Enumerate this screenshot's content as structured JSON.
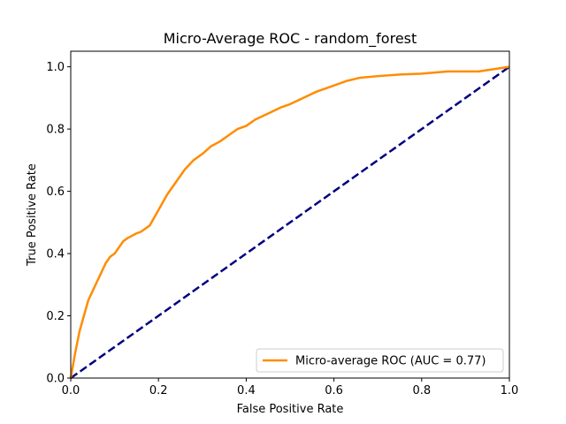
{
  "chart_data": {
    "type": "line",
    "title": "Micro-Average ROC - random_forest",
    "xlabel": "False Positive Rate",
    "ylabel": "True Positive Rate",
    "xlim": [
      0,
      1
    ],
    "ylim": [
      0,
      1.05
    ],
    "xticks": [
      "0.0",
      "0.2",
      "0.4",
      "0.6",
      "0.8",
      "1.0"
    ],
    "yticks": [
      "0.0",
      "0.2",
      "0.4",
      "0.6",
      "0.8",
      "1.0"
    ],
    "grid": false,
    "legend_position": "lower right",
    "series": [
      {
        "name": "Micro-average ROC (AUC = 0.77)",
        "color": "#ff8c00",
        "style": "solid",
        "x": [
          0.0,
          0.005,
          0.01,
          0.02,
          0.03,
          0.04,
          0.05,
          0.06,
          0.07,
          0.08,
          0.09,
          0.1,
          0.11,
          0.12,
          0.13,
          0.15,
          0.16,
          0.18,
          0.2,
          0.22,
          0.24,
          0.26,
          0.28,
          0.3,
          0.32,
          0.34,
          0.36,
          0.38,
          0.4,
          0.42,
          0.45,
          0.48,
          0.5,
          0.53,
          0.56,
          0.6,
          0.63,
          0.66,
          0.7,
          0.75,
          0.8,
          0.86,
          0.93,
          1.0
        ],
        "y": [
          0.0,
          0.04,
          0.08,
          0.15,
          0.2,
          0.25,
          0.28,
          0.31,
          0.34,
          0.37,
          0.39,
          0.4,
          0.42,
          0.44,
          0.45,
          0.465,
          0.47,
          0.49,
          0.54,
          0.59,
          0.63,
          0.67,
          0.7,
          0.72,
          0.745,
          0.76,
          0.78,
          0.8,
          0.81,
          0.83,
          0.85,
          0.87,
          0.88,
          0.9,
          0.92,
          0.94,
          0.955,
          0.965,
          0.97,
          0.975,
          0.978,
          0.985,
          0.985,
          1.0
        ]
      },
      {
        "name": "",
        "color": "#000080",
        "style": "dashed",
        "x": [
          0,
          1
        ],
        "y": [
          0,
          1
        ]
      }
    ]
  }
}
